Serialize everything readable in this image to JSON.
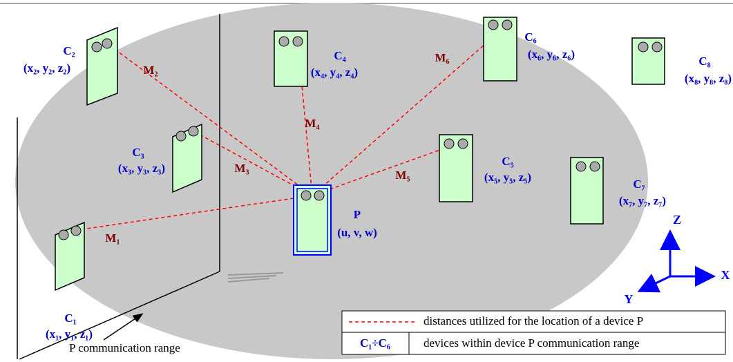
{
  "devices": [
    {
      "label": "C₁",
      "coords": "(x₁, y₁, z₁)"
    },
    {
      "label": "C₂",
      "coords": "(x₂, y₂, z₂)"
    },
    {
      "label": "C₃",
      "coords": "(x₃, y₃, z₃)"
    },
    {
      "label": "C₄",
      "coords": "(x₄, y₄, z₄)"
    },
    {
      "label": "C₅",
      "coords": "(x₅, y₅, z₅)"
    },
    {
      "label": "C₆",
      "coords": "(x₆, y₆, z₆)"
    },
    {
      "label": "C₇",
      "coords": "(x₇, y₇, z₇)"
    },
    {
      "label": "C₈",
      "coords": "(x₈, y₈, z₈)"
    }
  ],
  "target": {
    "label": "P",
    "coords": "(u, v, w)"
  },
  "distances": [
    "M₁",
    "M₂",
    "M₃",
    "M₄",
    "M₅",
    "M₆"
  ],
  "axes": {
    "z": "Z",
    "x": "X",
    "y": "Y"
  },
  "range_label": "P communication range",
  "legend": {
    "rows": [
      {
        "text": "distances utilized for the location of a device P"
      },
      {
        "symbol": "C₁÷C₆",
        "text": "devices within device P communication range"
      }
    ]
  }
}
